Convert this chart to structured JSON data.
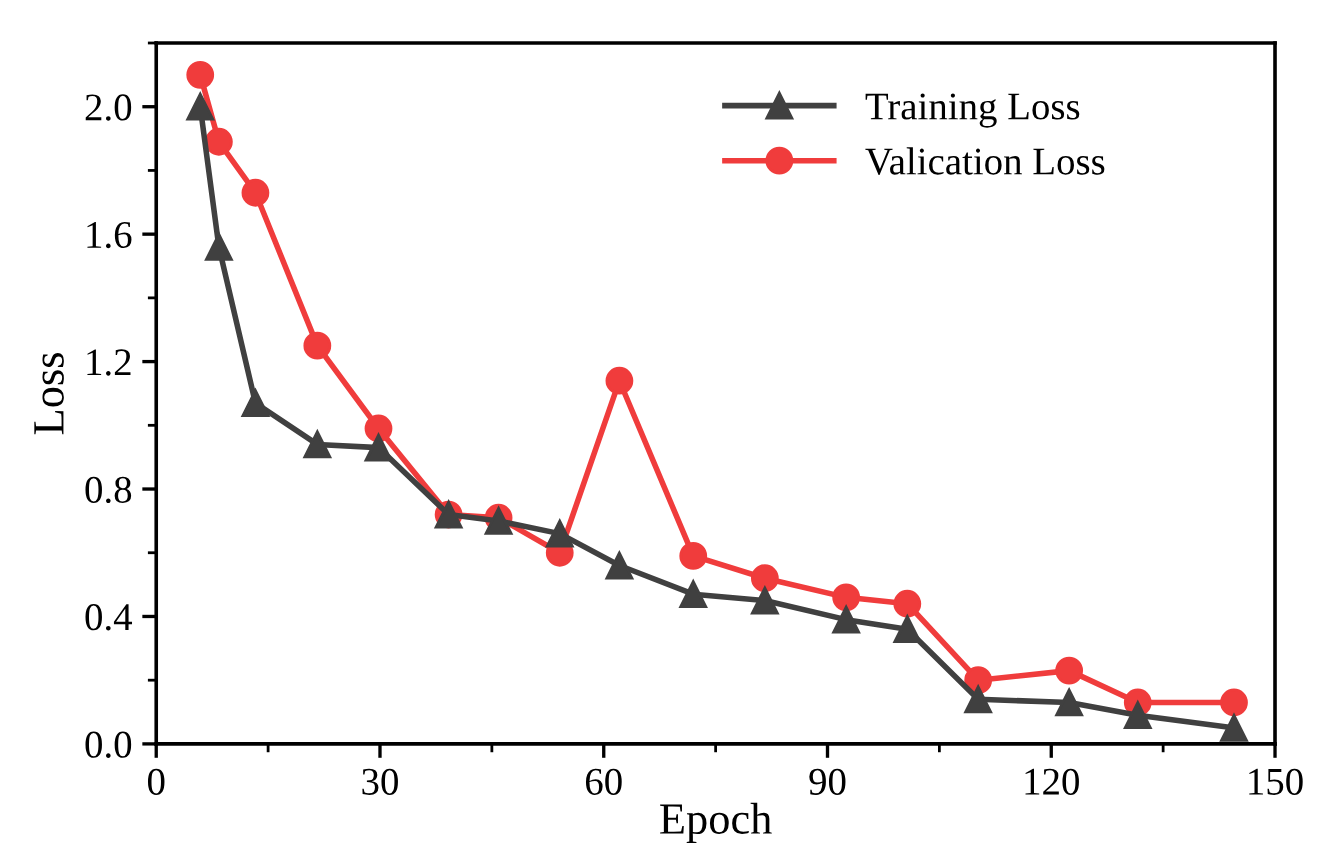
{
  "chart_data": {
    "type": "line",
    "xlabel": "Epoch",
    "ylabel": "Loss",
    "x": [
      5.9,
      8.4,
      13.3,
      21.6,
      29.8,
      39.2,
      45.9,
      54.1,
      62.1,
      72.0,
      81.6,
      92.5,
      100.7,
      110.2,
      122.4,
      131.6,
      144.5
    ],
    "xlim": [
      0,
      150
    ],
    "xticks": [
      0,
      30,
      60,
      90,
      120,
      150
    ],
    "ylim": [
      0,
      2.2
    ],
    "yticks": [
      {
        "value": 0,
        "label": "0.0"
      },
      0.4,
      0.8,
      1.2,
      1.6,
      {
        "value": 2,
        "label": "2.0"
      }
    ],
    "legend": "top right",
    "grid": false,
    "line_style": "solid",
    "series": [
      {
        "name": "Training Loss",
        "color": "#404040",
        "marker": "triangle",
        "values": [
          2.0,
          1.56,
          1.07,
          0.94,
          0.93,
          0.72,
          0.7,
          0.66,
          0.56,
          0.47,
          0.45,
          0.39,
          0.36,
          0.14,
          0.13,
          0.09,
          0.05
        ]
      },
      {
        "name": "Valication Loss",
        "color": "#f03c3c",
        "marker": "circle",
        "values": [
          2.1,
          1.89,
          1.73,
          1.25,
          0.99,
          0.72,
          0.71,
          0.6,
          1.14,
          0.59,
          0.52,
          0.46,
          0.44,
          0.2,
          0.23,
          0.13,
          0.13
        ]
      }
    ]
  }
}
